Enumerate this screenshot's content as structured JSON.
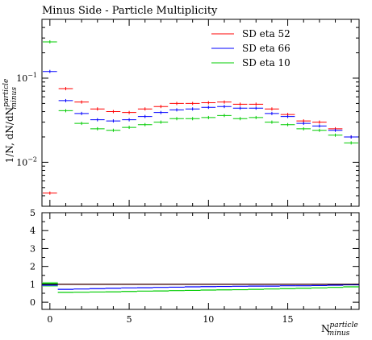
{
  "chart_data": [
    {
      "type": "scatter",
      "panel": "main",
      "title": "Minus Side - Particle Multiplicity",
      "ylabel": "1/N, dN/dN",
      "ylabel_super": "particle",
      "ylabel_sub": "minus",
      "yscale": "log",
      "ylim": [
        0.003,
        0.5
      ],
      "xlim": [
        -0.5,
        19.5
      ],
      "yticks": [
        {
          "value": 0.01,
          "base": "10",
          "exp": "−2"
        },
        {
          "value": 0.1,
          "base": "10",
          "exp": "−1"
        }
      ],
      "legend_position": "top-right",
      "x": [
        0,
        1,
        2,
        3,
        4,
        5,
        6,
        7,
        8,
        9,
        10,
        11,
        12,
        13,
        14,
        15,
        16,
        17,
        18,
        19
      ],
      "series": [
        {
          "name": "SD eta 52",
          "color": "#ff0000",
          "values": [
            0.0043,
            0.075,
            0.052,
            0.043,
            0.04,
            0.039,
            0.043,
            0.046,
            0.05,
            0.05,
            0.051,
            0.052,
            0.049,
            0.049,
            0.043,
            0.037,
            0.031,
            0.03,
            0.025,
            0.02
          ]
        },
        {
          "name": "SD eta 66",
          "color": "#0000ff",
          "values": [
            0.12,
            0.054,
            0.038,
            0.032,
            0.031,
            0.032,
            0.035,
            0.039,
            0.042,
            0.043,
            0.045,
            0.046,
            0.044,
            0.044,
            0.038,
            0.035,
            0.029,
            0.027,
            0.024,
            0.02
          ]
        },
        {
          "name": "SD eta 10",
          "color": "#00cc00",
          "values": [
            0.27,
            0.041,
            0.029,
            0.025,
            0.024,
            0.026,
            0.028,
            0.03,
            0.033,
            0.033,
            0.034,
            0.036,
            0.033,
            0.034,
            0.03,
            0.028,
            0.025,
            0.024,
            0.021,
            0.017
          ]
        }
      ]
    },
    {
      "type": "line",
      "panel": "ratio",
      "xlabel": "N",
      "xlabel_super": "particle",
      "xlabel_sub": "minus",
      "ylim": [
        -0.4,
        5
      ],
      "xlim": [
        -0.5,
        19.5
      ],
      "yticks": [
        0,
        1,
        2,
        3,
        4,
        5
      ],
      "xticks": [
        0,
        5,
        10,
        15
      ],
      "x": [
        0,
        1,
        2,
        3,
        4,
        5,
        6,
        7,
        8,
        9,
        10,
        11,
        12,
        13,
        14,
        15,
        16,
        17,
        18,
        19
      ],
      "series": [
        {
          "name": "SD eta 52",
          "color": "#ff0000",
          "values": [
            1,
            1,
            1,
            1,
            1,
            1,
            1,
            1,
            1,
            1,
            1,
            1,
            1,
            1,
            1,
            1,
            1,
            1,
            1,
            1
          ]
        },
        {
          "name": "SD eta 66",
          "color": "#0000ff",
          "values": [
            0.95,
            0.72,
            0.74,
            0.76,
            0.78,
            0.8,
            0.81,
            0.83,
            0.84,
            0.86,
            0.87,
            0.88,
            0.89,
            0.9,
            0.9,
            0.92,
            0.92,
            0.93,
            0.95,
            0.97
          ]
        },
        {
          "name": "SD eta 10",
          "color": "#00cc00",
          "values": [
            1.05,
            0.55,
            0.56,
            0.57,
            0.58,
            0.6,
            0.62,
            0.63,
            0.65,
            0.66,
            0.68,
            0.69,
            0.7,
            0.72,
            0.74,
            0.76,
            0.78,
            0.8,
            0.83,
            0.86
          ]
        }
      ]
    }
  ]
}
